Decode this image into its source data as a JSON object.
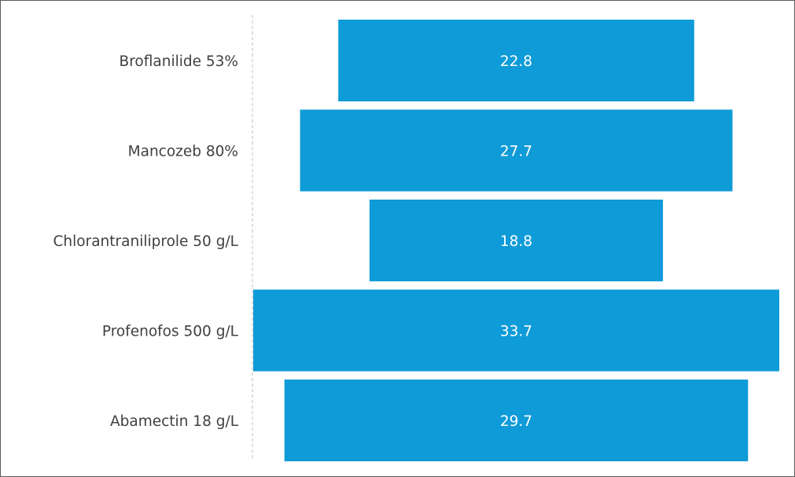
{
  "chart_data": {
    "type": "bar",
    "orientation": "horizontal",
    "centered": true,
    "categories": [
      "Broflanilide 53%",
      "Mancozeb 80%",
      "Chlorantraniliprole 50 g/L",
      "Profenofos 500 g/L",
      "Abamectin 18 g/L"
    ],
    "values": [
      22.8,
      27.7,
      18.8,
      33.7,
      29.7
    ],
    "value_labels": [
      "22.8",
      "27.7",
      "18.8",
      "33.7",
      "29.7"
    ],
    "title": "",
    "xlabel": "",
    "ylabel": "",
    "grid": false,
    "legend": "none",
    "colors": {
      "bar": "#0f9bd7",
      "category_text": "#404040",
      "value_text": "#ffffff",
      "axis_line": "#bfbfbf"
    }
  }
}
